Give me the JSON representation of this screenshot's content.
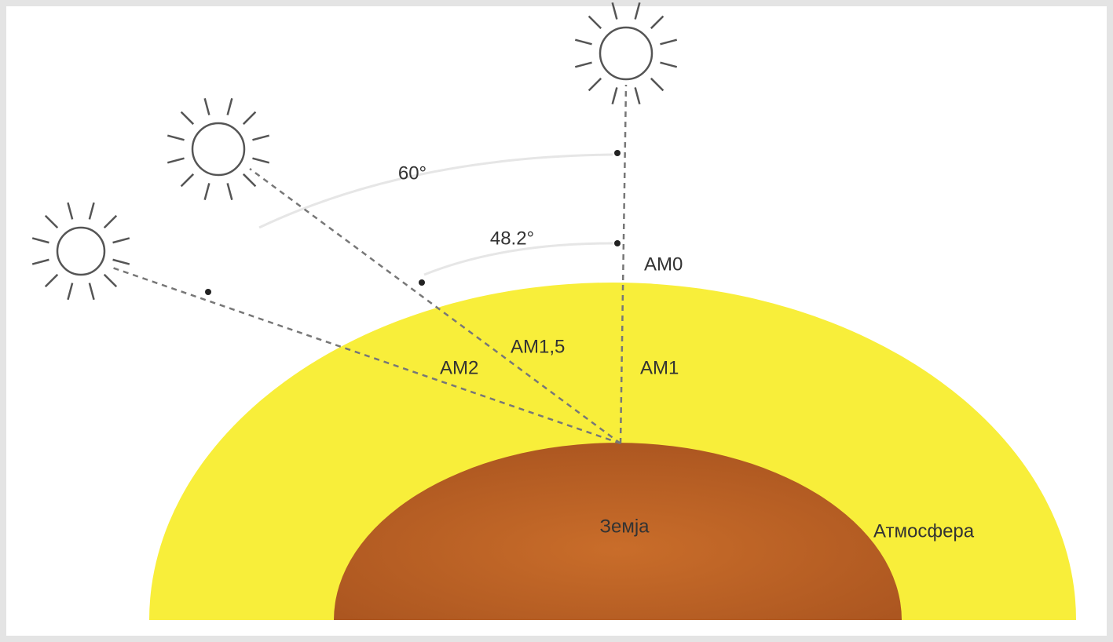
{
  "labels": {
    "angle_60": "60°",
    "angle_48": "48.2°",
    "am0": "AM0",
    "am15": "AM1,5",
    "am2": "AM2",
    "am1": "AM1",
    "earth": "Земја",
    "atmosphere": "Атмосфера"
  }
}
